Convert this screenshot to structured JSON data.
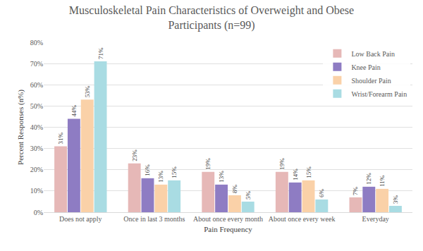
{
  "chart_data": {
    "type": "bar",
    "title": "Musculoskeletal Pain Characteristics of Overweight and Obese Participants (n=99)",
    "x_label": "Pain Frequency",
    "y_label": "Percent Responses (n%)",
    "categories": [
      "Does not apply",
      "Once in last 3 months",
      "About once every month",
      "About once every week",
      "Everyday"
    ],
    "series": [
      {
        "name": "Low Back Pain",
        "color": "#e6b8b7",
        "values": [
          31,
          23,
          19,
          19,
          7
        ],
        "value_labels": [
          "31%",
          "23%",
          "19%",
          "19%",
          "7%"
        ]
      },
      {
        "name": "Knee Pain",
        "color": "#8e7cc3",
        "values": [
          44,
          16,
          13,
          14,
          12
        ],
        "value_labels": [
          "44%",
          "16%",
          "13%",
          "14%",
          "12%"
        ]
      },
      {
        "name": "Shoulder Pain",
        "color": "#fad1a8",
        "values": [
          53,
          13,
          8,
          15,
          11
        ],
        "value_labels": [
          "53%",
          "13%",
          "8%",
          "15%",
          "11%"
        ]
      },
      {
        "name": "Wrist/Forearm Pain",
        "color": "#a9dce3",
        "values": [
          71,
          15,
          5,
          6,
          3
        ],
        "value_labels": [
          "71%",
          "15%",
          "5%",
          "6%",
          "3%"
        ]
      }
    ],
    "ylim": [
      0,
      80
    ],
    "yticks": [
      {
        "value": 0,
        "label": "0%"
      },
      {
        "value": 10,
        "label": "10%"
      },
      {
        "value": 20,
        "label": "20%"
      },
      {
        "value": 30,
        "label": "30%"
      },
      {
        "value": 40,
        "label": "40%"
      },
      {
        "value": 50,
        "label": "50%"
      },
      {
        "value": 60,
        "label": "60%"
      },
      {
        "value": 70,
        "label": "70%"
      },
      {
        "value": 80,
        "label": "80%"
      }
    ],
    "grid": true,
    "legend": "upper right",
    "data_labels": true
  }
}
